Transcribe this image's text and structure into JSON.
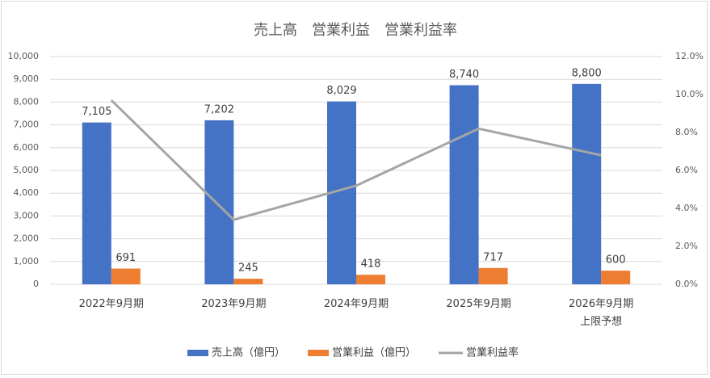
{
  "chart_data": {
    "type": "bar",
    "title": "売上高　営業利益　営業利益率",
    "categories": [
      "2022年9月期",
      "2023年9月期",
      "2024年9月期",
      "2025年9月期",
      "2026年9月期\n上限予想"
    ],
    "series": [
      {
        "name": "売上高（億円）",
        "type": "bar",
        "color": "#4472c4",
        "values": [
          7105,
          7202,
          8029,
          8740,
          8800
        ],
        "value_labels": [
          "7,105",
          "7,202",
          "8,029",
          "8,740",
          "8,800"
        ]
      },
      {
        "name": "営業利益（億円）",
        "type": "bar",
        "color": "#ed7d31",
        "values": [
          691,
          245,
          418,
          717,
          600
        ]
      },
      {
        "name": "営業利益率",
        "type": "line",
        "axis": "y2",
        "color": "#a5a5a5",
        "values": [
          9.7,
          3.4,
          5.2,
          8.2,
          6.8
        ]
      }
    ],
    "ylim": [
      0,
      10000
    ],
    "yticks": [
      0,
      {
        "value": 1000,
        "label": "1,000"
      },
      {
        "value": 2000,
        "label": "2,000"
      },
      {
        "value": 3000,
        "label": "3,000"
      },
      {
        "value": 4000,
        "label": "4,000"
      },
      {
        "value": 5000,
        "label": "5,000"
      },
      {
        "value": 6000,
        "label": "6,000"
      },
      {
        "value": 7000,
        "label": "7,000"
      },
      {
        "value": 8000,
        "label": "8,000"
      },
      {
        "value": 9000,
        "label": "9,000"
      },
      {
        "value": 10000,
        "label": "10,000"
      }
    ],
    "y2lim": [
      0,
      12
    ],
    "y2ticks": [
      {
        "value": 0,
        "label": "0.0%"
      },
      {
        "value": 2,
        "label": "2.0%"
      },
      {
        "value": 4,
        "label": "4.0%"
      },
      {
        "value": 6,
        "label": "6.0%"
      },
      {
        "value": 8,
        "label": "8.0%"
      },
      {
        "value": 10,
        "label": "10.0%"
      },
      {
        "value": 12,
        "label": "12.0%"
      }
    ],
    "legend": "bottom"
  }
}
